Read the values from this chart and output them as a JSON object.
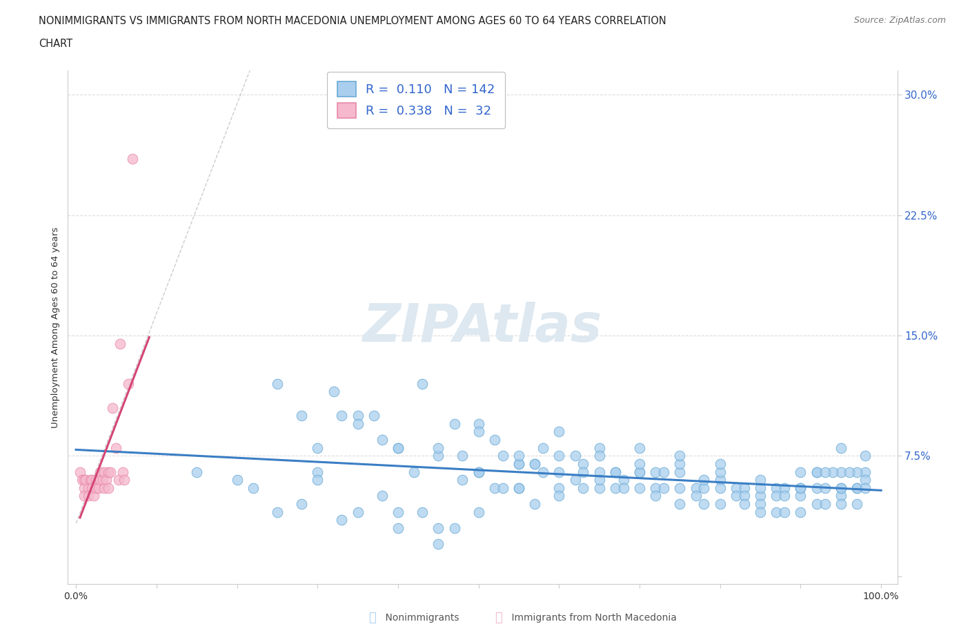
{
  "title_line1": "NONIMMIGRANTS VS IMMIGRANTS FROM NORTH MACEDONIA UNEMPLOYMENT AMONG AGES 60 TO 64 YEARS CORRELATION",
  "title_line2": "CHART",
  "source_text": "Source: ZipAtlas.com",
  "ylabel": "Unemployment Among Ages 60 to 64 years",
  "xlim": [
    -0.01,
    1.02
  ],
  "ylim": [
    -0.005,
    0.315
  ],
  "yticks": [
    0.0,
    0.075,
    0.15,
    0.225,
    0.3
  ],
  "ytick_labels": [
    "",
    "7.5%",
    "15.0%",
    "22.5%",
    "30.0%"
  ],
  "xtick_positions": [
    0.0,
    0.1,
    0.2,
    0.3,
    0.4,
    0.5,
    0.6,
    0.7,
    0.8,
    0.9,
    1.0
  ],
  "xtick_labels_shown": [
    "0.0%",
    "",
    "",
    "",
    "",
    "",
    "",
    "",
    "",
    "",
    "100.0%"
  ],
  "nonimm_R": 0.11,
  "nonimm_N": 142,
  "imm_R": 0.338,
  "imm_N": 32,
  "nonimm_color": "#aacfee",
  "imm_color": "#f5b8cc",
  "nonimm_edge_color": "#6aaad4",
  "imm_edge_color": "#e889aa",
  "nonimm_line_color": "#3a7ec4",
  "imm_line_color": "#d44477",
  "dash_line_color": "#cccccc",
  "watermark_color": "#dde8f0",
  "background_color": "#ffffff",
  "grid_color": "#e8e8e8",
  "nonimm_x": [
    0.15,
    0.2,
    0.22,
    0.25,
    0.28,
    0.3,
    0.3,
    0.32,
    0.33,
    0.35,
    0.37,
    0.38,
    0.38,
    0.4,
    0.4,
    0.42,
    0.43,
    0.43,
    0.45,
    0.45,
    0.47,
    0.47,
    0.48,
    0.48,
    0.5,
    0.5,
    0.5,
    0.52,
    0.52,
    0.53,
    0.53,
    0.55,
    0.55,
    0.55,
    0.57,
    0.57,
    0.57,
    0.58,
    0.58,
    0.6,
    0.6,
    0.6,
    0.62,
    0.62,
    0.63,
    0.63,
    0.63,
    0.65,
    0.65,
    0.65,
    0.67,
    0.67,
    0.67,
    0.68,
    0.68,
    0.7,
    0.7,
    0.7,
    0.72,
    0.72,
    0.72,
    0.73,
    0.73,
    0.75,
    0.75,
    0.75,
    0.77,
    0.77,
    0.78,
    0.78,
    0.78,
    0.8,
    0.8,
    0.8,
    0.82,
    0.82,
    0.83,
    0.83,
    0.83,
    0.85,
    0.85,
    0.85,
    0.87,
    0.87,
    0.87,
    0.88,
    0.88,
    0.88,
    0.9,
    0.9,
    0.9,
    0.92,
    0.92,
    0.92,
    0.93,
    0.93,
    0.95,
    0.95,
    0.95,
    0.97,
    0.97,
    0.97,
    0.98,
    0.98,
    0.98,
    0.28,
    0.33,
    0.35,
    0.4,
    0.45,
    0.5,
    0.55,
    0.6,
    0.65,
    0.7,
    0.75,
    0.8,
    0.85,
    0.9,
    0.95,
    0.3,
    0.35,
    0.4,
    0.45,
    0.5,
    0.55,
    0.6,
    0.65,
    0.7,
    0.75,
    0.8,
    0.85,
    0.9,
    0.95,
    0.25,
    0.97,
    0.98,
    0.96,
    0.95,
    0.94,
    0.92,
    0.93
  ],
  "nonimm_y": [
    0.065,
    0.06,
    0.055,
    0.12,
    0.1,
    0.065,
    0.06,
    0.115,
    0.1,
    0.1,
    0.1,
    0.05,
    0.085,
    0.08,
    0.04,
    0.065,
    0.12,
    0.04,
    0.075,
    0.03,
    0.095,
    0.03,
    0.06,
    0.075,
    0.095,
    0.065,
    0.04,
    0.085,
    0.055,
    0.075,
    0.055,
    0.07,
    0.07,
    0.055,
    0.07,
    0.07,
    0.045,
    0.08,
    0.065,
    0.065,
    0.075,
    0.055,
    0.06,
    0.075,
    0.07,
    0.065,
    0.055,
    0.08,
    0.065,
    0.055,
    0.065,
    0.065,
    0.055,
    0.06,
    0.055,
    0.065,
    0.065,
    0.055,
    0.055,
    0.065,
    0.05,
    0.065,
    0.055,
    0.065,
    0.055,
    0.045,
    0.055,
    0.05,
    0.055,
    0.06,
    0.045,
    0.06,
    0.055,
    0.045,
    0.055,
    0.05,
    0.055,
    0.05,
    0.045,
    0.05,
    0.045,
    0.04,
    0.055,
    0.05,
    0.04,
    0.055,
    0.05,
    0.04,
    0.055,
    0.05,
    0.04,
    0.065,
    0.055,
    0.045,
    0.055,
    0.045,
    0.055,
    0.05,
    0.045,
    0.055,
    0.055,
    0.045,
    0.065,
    0.06,
    0.055,
    0.045,
    0.035,
    0.04,
    0.03,
    0.02,
    0.065,
    0.055,
    0.05,
    0.06,
    0.07,
    0.07,
    0.065,
    0.055,
    0.055,
    0.055,
    0.08,
    0.095,
    0.08,
    0.08,
    0.09,
    0.075,
    0.09,
    0.075,
    0.08,
    0.075,
    0.07,
    0.06,
    0.065,
    0.065,
    0.04,
    0.065,
    0.075,
    0.065,
    0.08,
    0.065,
    0.065,
    0.065
  ],
  "imm_x": [
    0.005,
    0.008,
    0.01,
    0.01,
    0.01,
    0.012,
    0.015,
    0.015,
    0.018,
    0.02,
    0.02,
    0.022,
    0.025,
    0.025,
    0.028,
    0.03,
    0.03,
    0.033,
    0.035,
    0.035,
    0.038,
    0.04,
    0.04,
    0.043,
    0.045,
    0.05,
    0.053,
    0.055,
    0.058,
    0.06,
    0.065,
    0.07
  ],
  "imm_y": [
    0.065,
    0.06,
    0.06,
    0.055,
    0.05,
    0.06,
    0.055,
    0.05,
    0.06,
    0.06,
    0.055,
    0.05,
    0.06,
    0.055,
    0.055,
    0.065,
    0.06,
    0.06,
    0.065,
    0.055,
    0.06,
    0.065,
    0.055,
    0.065,
    0.105,
    0.08,
    0.06,
    0.145,
    0.065,
    0.06,
    0.12,
    0.26
  ]
}
